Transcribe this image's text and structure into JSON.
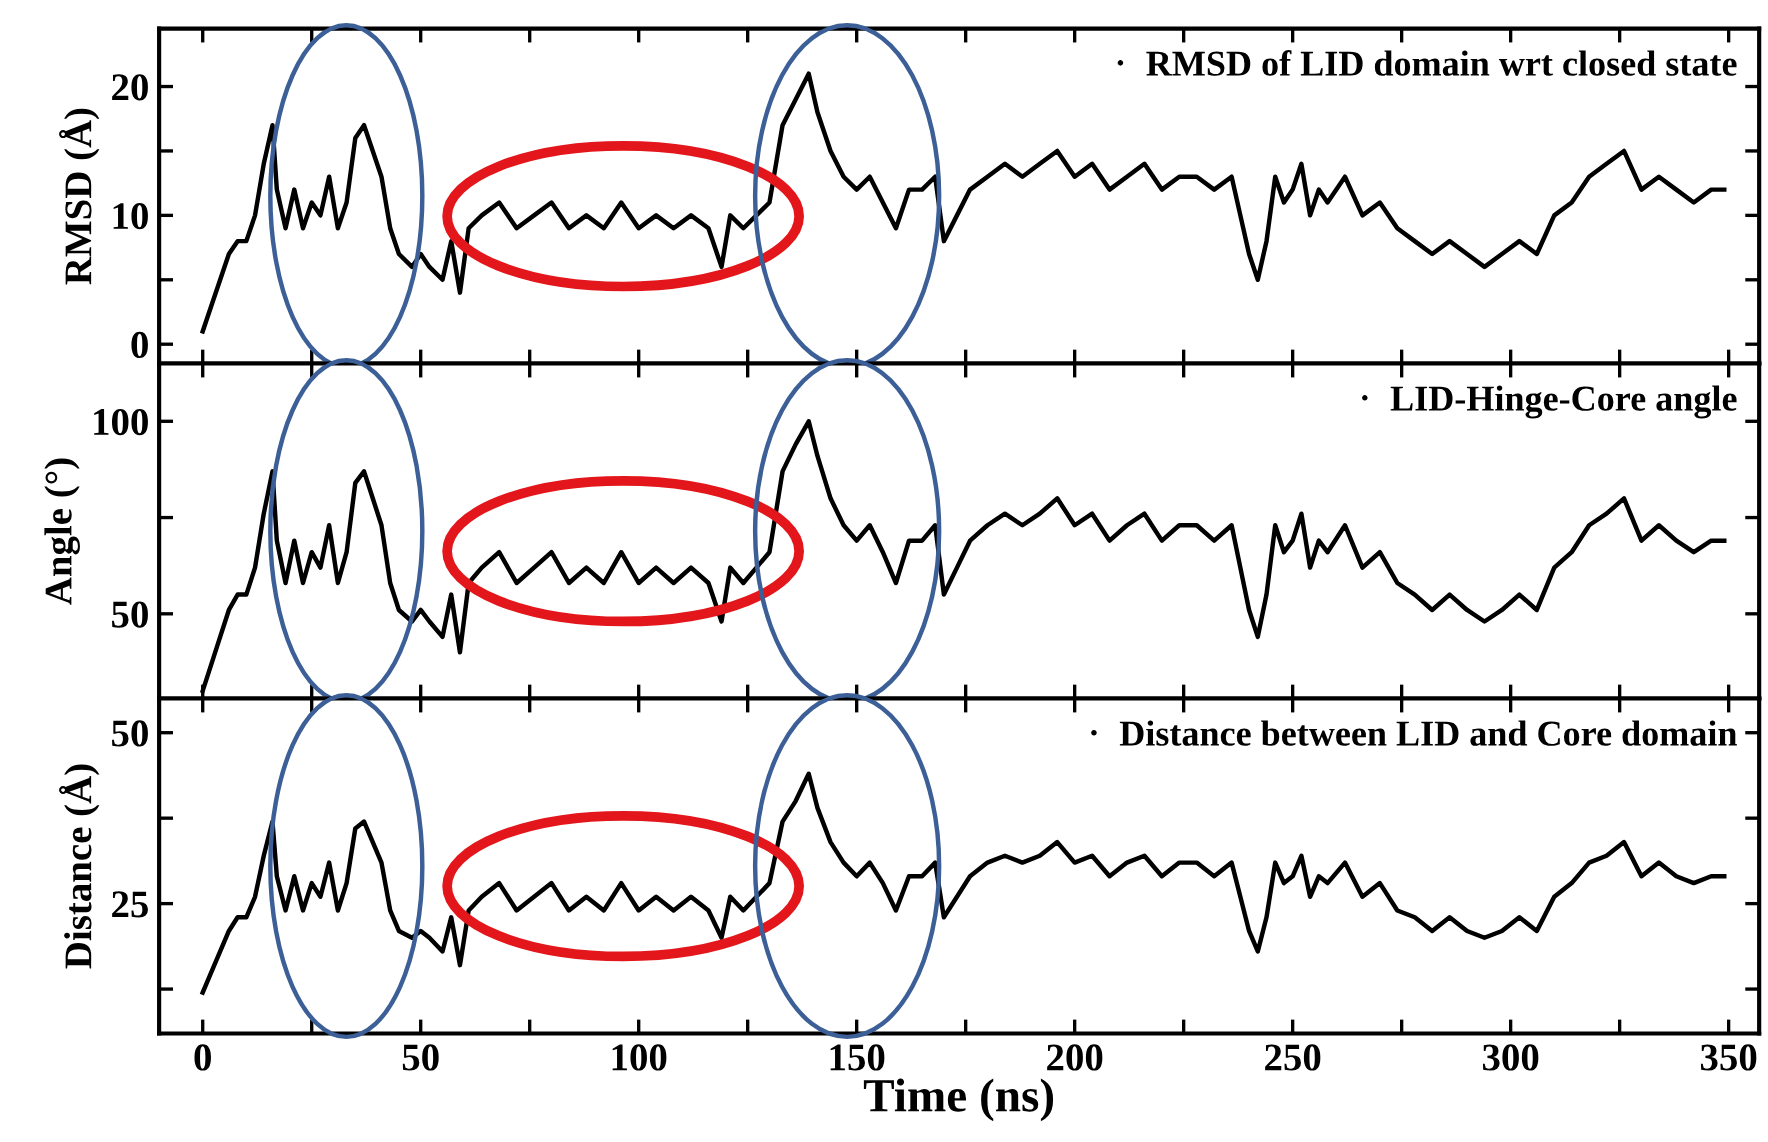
{
  "chart_data": [
    {
      "type": "line",
      "x": [
        0,
        2,
        4,
        6,
        8,
        10,
        12,
        14,
        16,
        17,
        19,
        21,
        23,
        25,
        27,
        29,
        31,
        33,
        35,
        37,
        39,
        41,
        43,
        45,
        48,
        50,
        52,
        55,
        57,
        59,
        61,
        64,
        68,
        72,
        76,
        80,
        84,
        88,
        92,
        96,
        100,
        104,
        108,
        112,
        116,
        119,
        121,
        124,
        127,
        130,
        133,
        136,
        139,
        141,
        144,
        147,
        150,
        153,
        156,
        159,
        162,
        165,
        168,
        170,
        173,
        176,
        180,
        184,
        188,
        192,
        196,
        200,
        204,
        208,
        212,
        216,
        220,
        224,
        228,
        232,
        236,
        238,
        240,
        242,
        244,
        246,
        248,
        250,
        252,
        254,
        256,
        258,
        262,
        266,
        270,
        274,
        278,
        282,
        286,
        290,
        294,
        298,
        302,
        306,
        310,
        314,
        318,
        322,
        326,
        330,
        334,
        338,
        342,
        346,
        349
      ],
      "series": [
        {
          "name": "RMSD of LID domain wrt closed state",
          "color": "#000000",
          "values": [
            1,
            3,
            5,
            7,
            8,
            8,
            10,
            14,
            17,
            12,
            9,
            12,
            9,
            11,
            10,
            13,
            9,
            11,
            16,
            17,
            15,
            13,
            9,
            7,
            6,
            7,
            6,
            5,
            8,
            4,
            9,
            10,
            11,
            9,
            10,
            11,
            9,
            10,
            9,
            11,
            9,
            10,
            9,
            10,
            9,
            6,
            10,
            9,
            10,
            11,
            17,
            19,
            21,
            18,
            15,
            13,
            12,
            13,
            11,
            9,
            12,
            12,
            13,
            8,
            10,
            12,
            13,
            14,
            13,
            14,
            15,
            13,
            14,
            12,
            13,
            14,
            12,
            13,
            13,
            12,
            13,
            10,
            7,
            5,
            8,
            13,
            11,
            12,
            14,
            10,
            12,
            11,
            13,
            10,
            11,
            9,
            8,
            7,
            8,
            7,
            6,
            7,
            8,
            7,
            10,
            11,
            13,
            14,
            15,
            12,
            13,
            12,
            11,
            12,
            12
          ]
        }
      ],
      "ylabel": "RMSD (Å)",
      "xlim": [
        -10,
        357
      ],
      "xticks": [
        0,
        {
          "value": 25,
          "label": null
        },
        50,
        {
          "value": 75,
          "label": null
        },
        100,
        {
          "value": 125,
          "label": null
        },
        150,
        {
          "value": 175,
          "label": null
        },
        200,
        {
          "value": 225,
          "label": null
        },
        250,
        {
          "value": 275,
          "label": null
        },
        300,
        {
          "value": 325,
          "label": null
        },
        350
      ],
      "ylim": [
        -1.5,
        24.5
      ],
      "yticks": [
        0,
        {
          "value": 5,
          "label": null
        },
        10,
        {
          "value": 15,
          "label": null
        },
        20
      ],
      "tick_labels": "y",
      "legend": "top right",
      "marker": "none",
      "line_style": "solid"
    },
    {
      "type": "line",
      "x": [
        0,
        2,
        4,
        6,
        8,
        10,
        12,
        14,
        16,
        17,
        19,
        21,
        23,
        25,
        27,
        29,
        31,
        33,
        35,
        37,
        39,
        41,
        43,
        45,
        48,
        50,
        52,
        55,
        57,
        59,
        61,
        64,
        68,
        72,
        76,
        80,
        84,
        88,
        92,
        96,
        100,
        104,
        108,
        112,
        116,
        119,
        121,
        124,
        127,
        130,
        133,
        136,
        139,
        141,
        144,
        147,
        150,
        153,
        156,
        159,
        162,
        165,
        168,
        170,
        173,
        176,
        180,
        184,
        188,
        192,
        196,
        200,
        204,
        208,
        212,
        216,
        220,
        224,
        228,
        232,
        236,
        238,
        240,
        242,
        244,
        246,
        248,
        250,
        252,
        254,
        256,
        258,
        262,
        266,
        270,
        274,
        278,
        282,
        286,
        290,
        294,
        298,
        302,
        306,
        310,
        314,
        318,
        322,
        326,
        330,
        334,
        338,
        342,
        346,
        349
      ],
      "series": [
        {
          "name": "LID-Hinge-Core angle",
          "color": "#000000",
          "values": [
            30,
            37,
            44,
            51,
            55,
            55,
            62,
            76,
            87,
            69,
            58,
            69,
            58,
            66,
            62,
            73,
            58,
            66,
            84,
            87,
            80,
            73,
            58,
            51,
            48,
            51,
            48,
            44,
            55,
            40,
            58,
            62,
            66,
            58,
            62,
            66,
            58,
            62,
            58,
            66,
            58,
            62,
            58,
            62,
            58,
            48,
            62,
            58,
            62,
            66,
            87,
            94,
            100,
            91,
            80,
            73,
            69,
            73,
            66,
            58,
            69,
            69,
            73,
            55,
            62,
            69,
            73,
            76,
            73,
            76,
            80,
            73,
            76,
            69,
            73,
            76,
            69,
            73,
            73,
            69,
            73,
            62,
            51,
            44,
            55,
            73,
            66,
            69,
            76,
            62,
            69,
            66,
            73,
            62,
            66,
            58,
            55,
            51,
            55,
            51,
            48,
            51,
            55,
            51,
            62,
            66,
            73,
            76,
            80,
            69,
            73,
            69,
            66,
            69,
            69
          ]
        }
      ],
      "ylabel": "Angle (°)",
      "xlim": [
        -10,
        357
      ],
      "xticks": [
        0,
        {
          "value": 25,
          "label": null
        },
        50,
        {
          "value": 75,
          "label": null
        },
        100,
        {
          "value": 125,
          "label": null
        },
        150,
        {
          "value": 175,
          "label": null
        },
        200,
        {
          "value": 225,
          "label": null
        },
        250,
        {
          "value": 275,
          "label": null
        },
        300,
        {
          "value": 325,
          "label": null
        },
        350
      ],
      "ylim": [
        28,
        115
      ],
      "yticks": [
        50,
        {
          "value": 75,
          "label": null
        },
        100
      ],
      "tick_labels": "y",
      "legend": "top right",
      "marker": "none",
      "line_style": "solid"
    },
    {
      "type": "line",
      "x": [
        0,
        2,
        4,
        6,
        8,
        10,
        12,
        14,
        16,
        17,
        19,
        21,
        23,
        25,
        27,
        29,
        31,
        33,
        35,
        37,
        39,
        41,
        43,
        45,
        48,
        50,
        52,
        55,
        57,
        59,
        61,
        64,
        68,
        72,
        76,
        80,
        84,
        88,
        92,
        96,
        100,
        104,
        108,
        112,
        116,
        119,
        121,
        124,
        127,
        130,
        133,
        136,
        139,
        141,
        144,
        147,
        150,
        153,
        156,
        159,
        162,
        165,
        168,
        170,
        173,
        176,
        180,
        184,
        188,
        192,
        196,
        200,
        204,
        208,
        212,
        216,
        220,
        224,
        228,
        232,
        236,
        238,
        240,
        242,
        244,
        246,
        248,
        250,
        252,
        254,
        256,
        258,
        262,
        266,
        270,
        274,
        278,
        282,
        286,
        290,
        294,
        298,
        302,
        306,
        310,
        314,
        318,
        322,
        326,
        330,
        334,
        338,
        342,
        346,
        349
      ],
      "series": [
        {
          "name": "Distance between LID and Core domain",
          "color": "#000000",
          "values": [
            12,
            15,
            18,
            21,
            23,
            23,
            26,
            32,
            37,
            29,
            24,
            29,
            24,
            28,
            26,
            31,
            24,
            28,
            36,
            37,
            34,
            31,
            24,
            21,
            20,
            21,
            20,
            18,
            23,
            16,
            24,
            26,
            28,
            24,
            26,
            28,
            24,
            26,
            24,
            28,
            24,
            26,
            24,
            26,
            24,
            20,
            26,
            24,
            26,
            28,
            37,
            40,
            44,
            39,
            34,
            31,
            29,
            31,
            28,
            24,
            29,
            29,
            31,
            23,
            26,
            29,
            31,
            32,
            31,
            32,
            34,
            31,
            32,
            29,
            31,
            32,
            29,
            31,
            31,
            29,
            31,
            26,
            21,
            18,
            23,
            31,
            28,
            29,
            32,
            26,
            29,
            28,
            31,
            26,
            28,
            24,
            23,
            21,
            23,
            21,
            20,
            21,
            23,
            21,
            26,
            28,
            31,
            32,
            34,
            29,
            31,
            29,
            28,
            29,
            29
          ]
        }
      ],
      "ylabel": "Distance (Å)",
      "xlabel": "Time (ns)",
      "xlim": [
        -10,
        357
      ],
      "xticks": [
        0,
        {
          "value": 25,
          "label": null
        },
        50,
        {
          "value": 75,
          "label": null
        },
        100,
        {
          "value": 125,
          "label": null
        },
        150,
        {
          "value": 175,
          "label": null
        },
        200,
        {
          "value": 225,
          "label": null
        },
        250,
        {
          "value": 275,
          "label": null
        },
        300,
        {
          "value": 325,
          "label": null
        },
        350
      ],
      "ylim": [
        6,
        55
      ],
      "yticks": [
        {
          "value": 12.5,
          "label": null
        },
        25,
        {
          "value": 37.5,
          "label": null
        },
        50
      ],
      "legend": "top right",
      "marker": "none",
      "line_style": "solid"
    }
  ]
}
